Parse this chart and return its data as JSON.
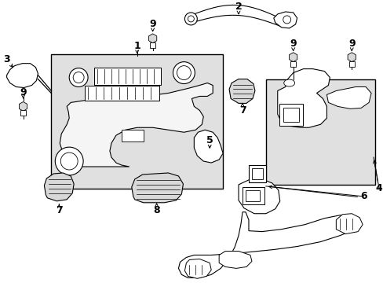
{
  "background_color": "#ffffff",
  "line_color": "#000000",
  "shaded_color": "#e0e0e0",
  "fig_width": 4.89,
  "fig_height": 3.6,
  "dpi": 100
}
